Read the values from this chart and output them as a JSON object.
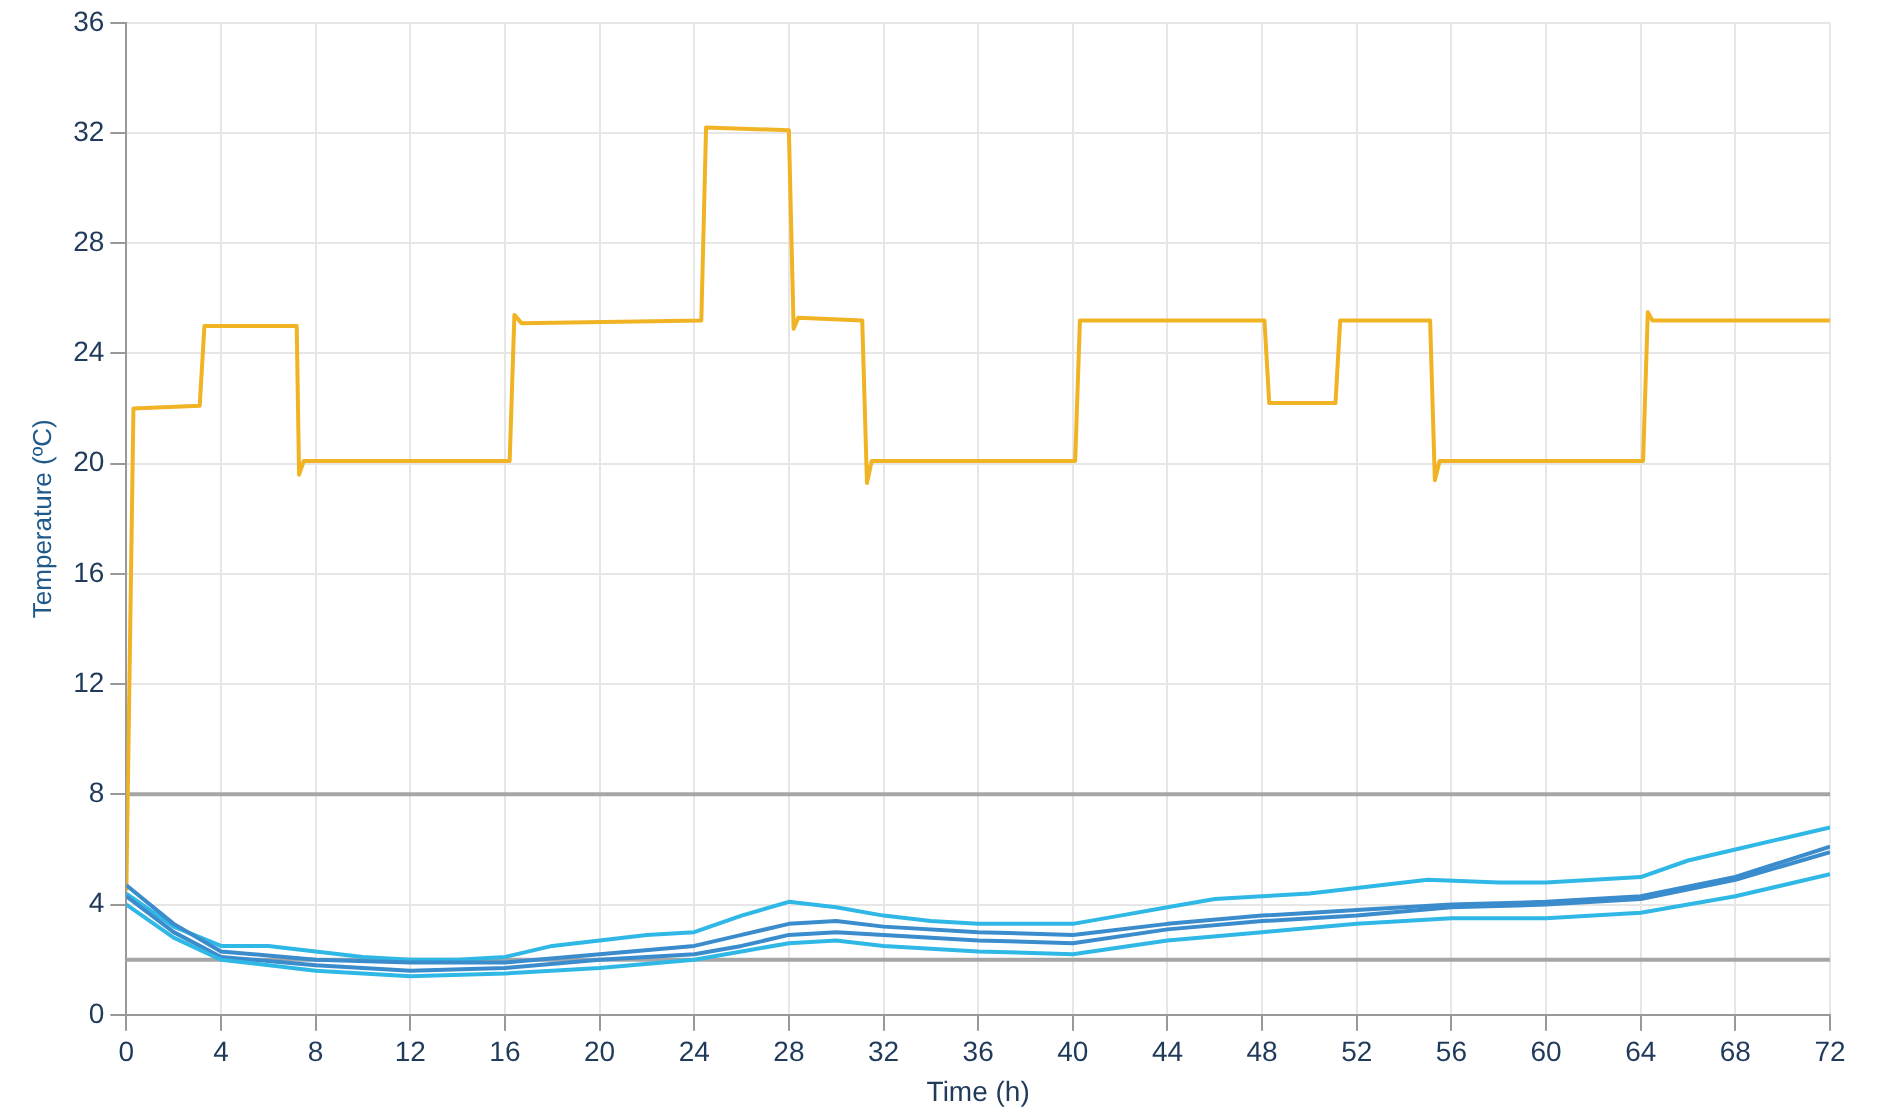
{
  "chart_data": {
    "type": "line",
    "xlabel": "Time (h)",
    "ylabel": "Temperature (ºC)",
    "xlim": [
      0,
      72
    ],
    "ylim": [
      0,
      36
    ],
    "xticks": [
      0,
      4,
      8,
      12,
      16,
      20,
      24,
      28,
      32,
      36,
      40,
      44,
      48,
      52,
      56,
      60,
      64,
      68,
      72
    ],
    "yticks": [
      0,
      4,
      8,
      12,
      16,
      20,
      24,
      28,
      32,
      36
    ],
    "grid": true,
    "legend": false,
    "marker": "none",
    "line_style": "solid",
    "ref_lines": [
      {
        "axis": "y",
        "value": 8,
        "color": "#a6a6a6"
      },
      {
        "axis": "y",
        "value": 2,
        "color": "#a6a6a6"
      }
    ],
    "series": [
      {
        "color": "#f0b323",
        "x": [
          0,
          0.3,
          3.1,
          3.3,
          7.2,
          7.3,
          7.5,
          16.2,
          16.4,
          16.7,
          24.3,
          24.5,
          28.0,
          28.2,
          28.4,
          31.1,
          31.3,
          31.5,
          40.1,
          40.3,
          48.1,
          48.3,
          51.1,
          51.3,
          55.1,
          55.3,
          55.5,
          64.1,
          64.3,
          64.5,
          72
        ],
        "values": [
          4.5,
          22,
          22.1,
          25,
          25,
          19.6,
          20.1,
          20.1,
          25.4,
          25.1,
          25.2,
          32.2,
          32.1,
          24.9,
          25.3,
          25.2,
          19.3,
          20.1,
          20.1,
          25.2,
          25.2,
          22.2,
          22.2,
          25.2,
          25.2,
          19.4,
          20.1,
          20.1,
          25.5,
          25.2,
          25.2
        ]
      },
      {
        "color": "#2fb8e6",
        "x": [
          0,
          2,
          4,
          6,
          8,
          10,
          12,
          14,
          16,
          18,
          20,
          22,
          24,
          26,
          28,
          30,
          32,
          34,
          36,
          38,
          40,
          42,
          44,
          46,
          48,
          50,
          52,
          54,
          55,
          58,
          60,
          62,
          64,
          66,
          68,
          70,
          72
        ],
        "values": [
          4.4,
          3.2,
          2.5,
          2.5,
          2.3,
          2.1,
          2.0,
          2.0,
          2.1,
          2.5,
          2.7,
          2.9,
          3.0,
          3.6,
          4.1,
          3.9,
          3.6,
          3.4,
          3.3,
          3.3,
          3.3,
          3.6,
          3.9,
          4.2,
          4.3,
          4.4,
          4.6,
          4.8,
          4.9,
          4.8,
          4.8,
          4.9,
          5.0,
          5.6,
          6.0,
          6.4,
          6.8
        ]
      },
      {
        "color": "#3a8ccc",
        "x": [
          0,
          2,
          4,
          8,
          12,
          16,
          20,
          24,
          26,
          28,
          30,
          32,
          36,
          40,
          44,
          48,
          52,
          56,
          60,
          64,
          68,
          72
        ],
        "values": [
          4.7,
          3.3,
          2.3,
          2.0,
          1.9,
          1.9,
          2.2,
          2.5,
          2.9,
          3.3,
          3.4,
          3.2,
          3.0,
          2.9,
          3.3,
          3.6,
          3.8,
          4.0,
          4.1,
          4.3,
          5.0,
          6.1
        ]
      },
      {
        "color": "#3a8ccc",
        "x": [
          0,
          2,
          4,
          8,
          12,
          16,
          20,
          24,
          26,
          28,
          30,
          32,
          36,
          40,
          44,
          48,
          52,
          56,
          60,
          64,
          68,
          72
        ],
        "values": [
          4.3,
          3.0,
          2.1,
          1.8,
          1.6,
          1.7,
          2.0,
          2.2,
          2.5,
          2.9,
          3.0,
          2.9,
          2.7,
          2.6,
          3.1,
          3.4,
          3.6,
          3.9,
          4.0,
          4.2,
          4.9,
          5.9
        ]
      },
      {
        "color": "#2fb8e6",
        "x": [
          0,
          2,
          4,
          8,
          12,
          16,
          20,
          24,
          26,
          28,
          30,
          32,
          36,
          40,
          44,
          48,
          52,
          56,
          60,
          64,
          68,
          72
        ],
        "values": [
          4.0,
          2.8,
          2.0,
          1.6,
          1.4,
          1.5,
          1.7,
          2.0,
          2.3,
          2.6,
          2.7,
          2.5,
          2.3,
          2.2,
          2.7,
          3.0,
          3.3,
          3.5,
          3.5,
          3.7,
          4.3,
          5.1
        ]
      }
    ]
  }
}
